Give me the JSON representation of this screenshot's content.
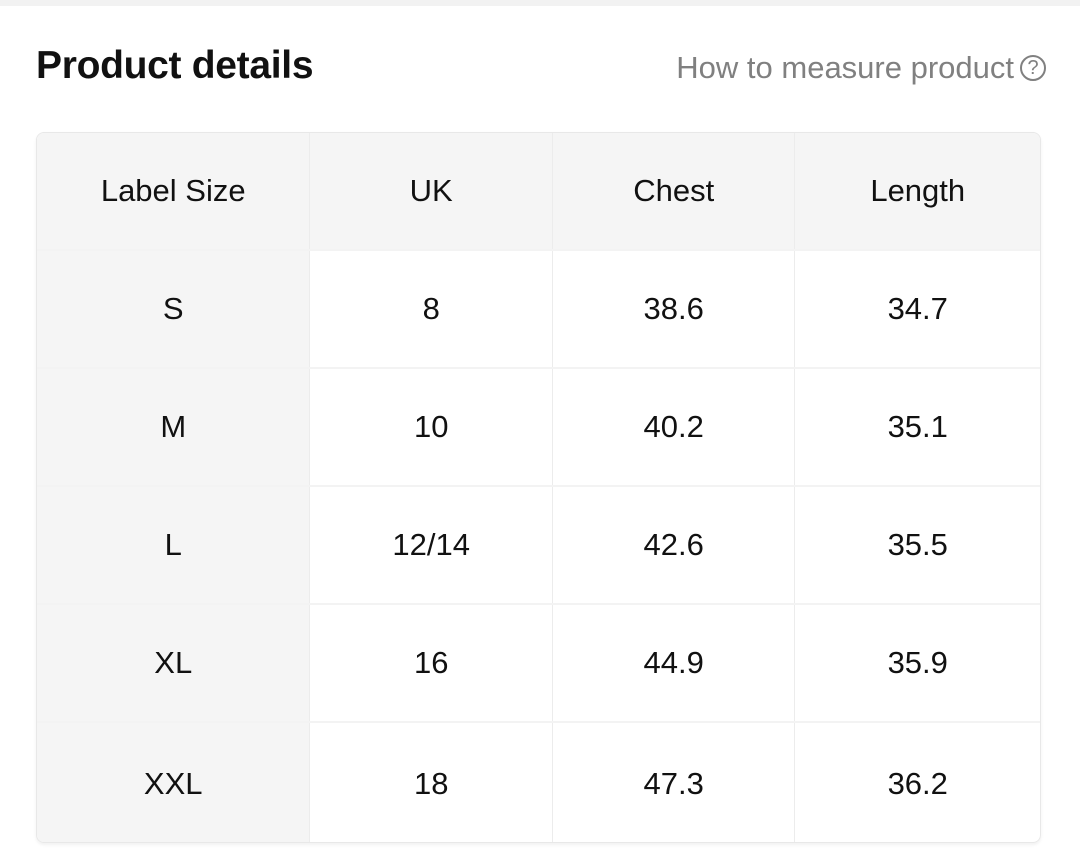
{
  "header": {
    "title": "Product details",
    "help_link": "How to measure product",
    "help_icon": "question-circle-icon"
  },
  "table": {
    "columns": [
      "Label Size",
      "UK",
      "Chest",
      "Length"
    ],
    "rows": [
      [
        "S",
        "8",
        "38.6",
        "34.7"
      ],
      [
        "M",
        "10",
        "40.2",
        "35.1"
      ],
      [
        "L",
        "12/14",
        "42.6",
        "35.5"
      ],
      [
        "XL",
        "16",
        "44.9",
        "35.9"
      ],
      [
        "XXL",
        "18",
        "47.3",
        "36.2"
      ]
    ]
  }
}
